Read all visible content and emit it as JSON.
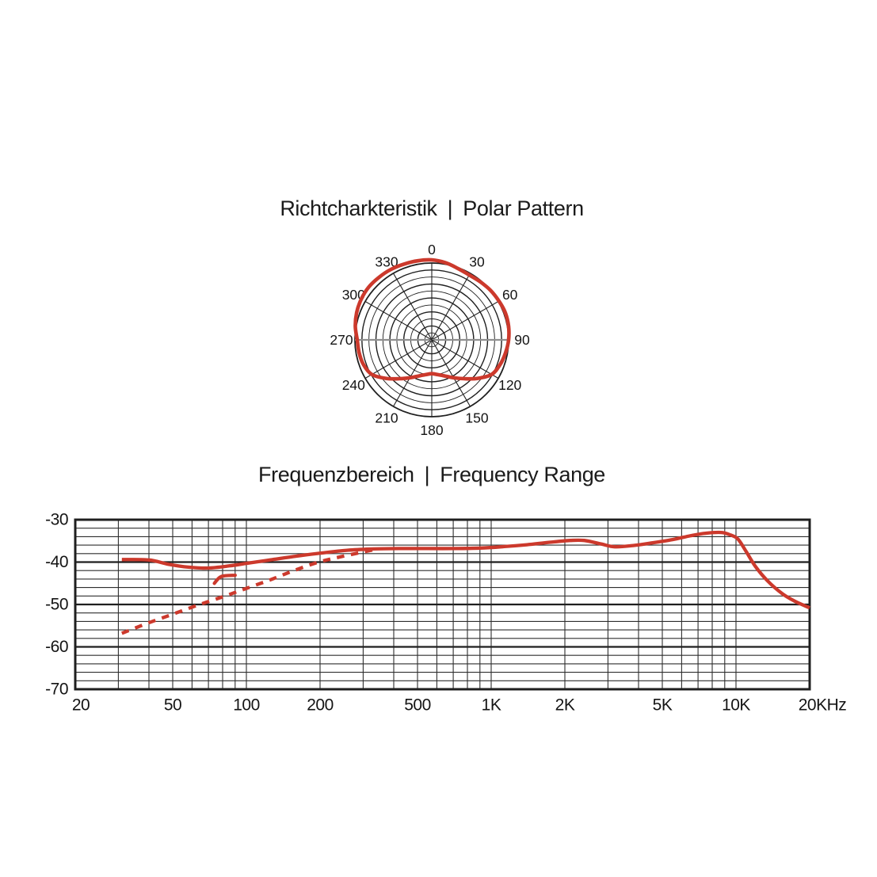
{
  "colors": {
    "background": "#ffffff",
    "curve_red": "#cc392c",
    "grid_dark": "#1f1f1f",
    "grid_minor": "#2e2e2e",
    "axis_gray": "#8f8f8f",
    "text": "#141414"
  },
  "polar_section": {
    "title_de": "Richtcharkteristik",
    "separator": "|",
    "title_en": "Polar Pattern"
  },
  "freq_section": {
    "title_de": "Frequenzbereich",
    "separator": "|",
    "title_en": "Frequency Range"
  },
  "chart_data": [
    {
      "type": "polar",
      "title": "Richtcharkteristik | Polar Pattern",
      "rings": 11,
      "spoke_step_deg": 30,
      "angle_labels": [
        "0",
        "30",
        "60",
        "90",
        "120",
        "150",
        "180",
        "210",
        "240",
        "270",
        "300",
        "330"
      ],
      "curve": {
        "name": "polar-response",
        "points_deg_rfrac": [
          [
            0,
            1.04
          ],
          [
            10,
            1.02
          ],
          [
            20,
            0.99
          ],
          [
            30,
            0.975
          ],
          [
            40,
            0.985
          ],
          [
            50,
            1.0
          ],
          [
            60,
            1.01
          ],
          [
            70,
            1.02
          ],
          [
            80,
            1.015
          ],
          [
            90,
            1.0
          ],
          [
            100,
            0.975
          ],
          [
            110,
            0.945
          ],
          [
            120,
            0.9
          ],
          [
            130,
            0.78
          ],
          [
            140,
            0.66
          ],
          [
            150,
            0.57
          ],
          [
            160,
            0.5
          ],
          [
            170,
            0.46
          ],
          [
            180,
            0.44
          ],
          [
            190,
            0.46
          ],
          [
            200,
            0.5
          ],
          [
            210,
            0.57
          ],
          [
            220,
            0.66
          ],
          [
            230,
            0.78
          ],
          [
            240,
            0.9
          ],
          [
            250,
            0.945
          ],
          [
            260,
            0.96
          ],
          [
            270,
            0.97
          ],
          [
            280,
            1.01
          ],
          [
            290,
            1.04
          ],
          [
            300,
            1.06
          ],
          [
            310,
            1.07
          ],
          [
            320,
            1.065
          ],
          [
            330,
            1.06
          ],
          [
            340,
            1.05
          ],
          [
            350,
            1.045
          ]
        ]
      }
    },
    {
      "type": "line",
      "title": "Frequenzbereich | Frequency Range",
      "x_scale": "log",
      "xlim": [
        20,
        20000
      ],
      "ylim": [
        -70,
        -30
      ],
      "minor_y_step_db": 2,
      "x_tick_labels": [
        {
          "f": 20,
          "label": "20"
        },
        {
          "f": 50,
          "label": "50"
        },
        {
          "f": 100,
          "label": "100"
        },
        {
          "f": 200,
          "label": "200"
        },
        {
          "f": 500,
          "label": "500"
        },
        {
          "f": 1000,
          "label": "1K"
        },
        {
          "f": 2000,
          "label": "2K"
        },
        {
          "f": 5000,
          "label": "5K"
        },
        {
          "f": 10000,
          "label": "10K"
        },
        {
          "f": 20000,
          "label": "20KHz"
        }
      ],
      "y_tick_labels": [
        {
          "v": -30,
          "label": "-30"
        },
        {
          "v": -40,
          "label": "-40"
        },
        {
          "v": -50,
          "label": "-50"
        },
        {
          "v": -60,
          "label": "-60"
        },
        {
          "v": -70,
          "label": "-70"
        }
      ],
      "series": [
        {
          "name": "on-axis-response",
          "style": "solid",
          "points": [
            [
              31,
              -39.4
            ],
            [
              40,
              -39.5
            ],
            [
              48,
              -40.5
            ],
            [
              58,
              -41.2
            ],
            [
              70,
              -41.4
            ],
            [
              85,
              -40.9
            ],
            [
              100,
              -40.3
            ],
            [
              125,
              -39.5
            ],
            [
              160,
              -38.6
            ],
            [
              200,
              -37.9
            ],
            [
              260,
              -37.2
            ],
            [
              330,
              -36.9
            ],
            [
              420,
              -36.8
            ],
            [
              550,
              -36.8
            ],
            [
              700,
              -36.8
            ],
            [
              900,
              -36.7
            ],
            [
              1100,
              -36.4
            ],
            [
              1400,
              -35.9
            ],
            [
              1750,
              -35.3
            ],
            [
              2100,
              -34.9
            ],
            [
              2400,
              -34.9
            ],
            [
              2800,
              -35.7
            ],
            [
              3200,
              -36.4
            ],
            [
              3800,
              -36.1
            ],
            [
              4500,
              -35.5
            ],
            [
              5500,
              -34.7
            ],
            [
              6500,
              -33.8
            ],
            [
              7500,
              -33.2
            ],
            [
              8700,
              -33.0
            ],
            [
              9500,
              -33.6
            ],
            [
              10200,
              -34.6
            ],
            [
              11000,
              -37.5
            ],
            [
              12000,
              -41.0
            ],
            [
              13500,
              -44.5
            ],
            [
              15500,
              -47.5
            ],
            [
              17500,
              -49.3
            ],
            [
              20000,
              -50.8
            ]
          ]
        },
        {
          "name": "low-frequency-rolloff",
          "style": "dashed",
          "points": [
            [
              31,
              -56.8
            ],
            [
              40,
              -54.3
            ],
            [
              50,
              -52.3
            ],
            [
              63,
              -50.2
            ],
            [
              80,
              -48.2
            ],
            [
              100,
              -46.2
            ],
            [
              125,
              -44.2
            ],
            [
              155,
              -42.1
            ],
            [
              195,
              -40.1
            ],
            [
              245,
              -38.7
            ],
            [
              330,
              -37.1
            ]
          ]
        },
        {
          "name": "rolloff-hook",
          "style": "solid-short",
          "points": [
            [
              74,
              -45.0
            ],
            [
              79,
              -43.4
            ],
            [
              90,
              -43.1
            ]
          ]
        }
      ]
    }
  ]
}
